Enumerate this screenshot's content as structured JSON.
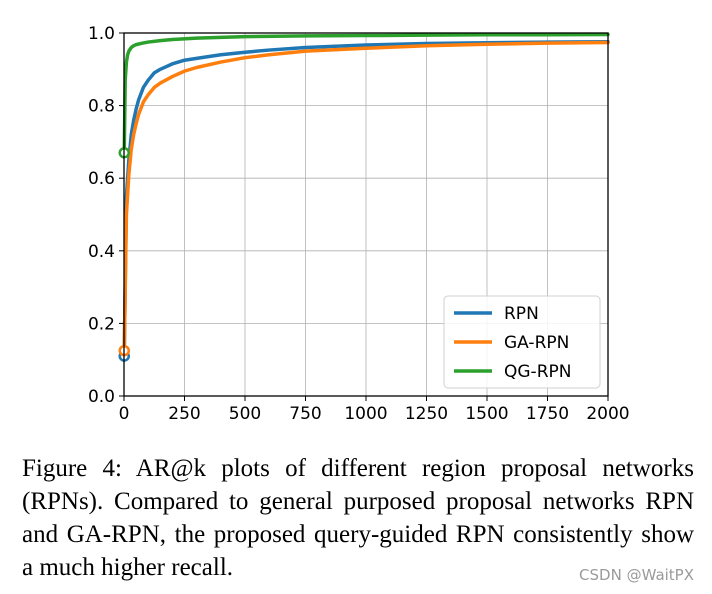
{
  "chart_data": {
    "type": "line",
    "title": "",
    "xlabel": "",
    "ylabel": "",
    "xlim": [
      0,
      2000
    ],
    "ylim": [
      0.0,
      1.0
    ],
    "x_ticks": [
      0,
      250,
      500,
      750,
      1000,
      1250,
      1500,
      1750,
      2000
    ],
    "x_tick_labels": [
      "0",
      "250",
      "500",
      "750",
      "1000",
      "1250",
      "1500",
      "1750",
      "2000"
    ],
    "y_ticks": [
      0.0,
      0.2,
      0.4,
      0.6,
      0.8,
      1.0
    ],
    "y_tick_labels": [
      "0.0",
      "0.2",
      "0.4",
      "0.6",
      "0.8",
      "1.0"
    ],
    "grid": true,
    "legend_position": "lower-right",
    "series": [
      {
        "name": "RPN",
        "color": "#1f77b4",
        "x": [
          1,
          10,
          20,
          30,
          40,
          50,
          60,
          80,
          100,
          125,
          150,
          200,
          250,
          300,
          400,
          500,
          600,
          750,
          1000,
          1250,
          1500,
          1750,
          2000
        ],
        "y": [
          0.11,
          0.55,
          0.65,
          0.72,
          0.76,
          0.79,
          0.815,
          0.85,
          0.87,
          0.89,
          0.9,
          0.915,
          0.925,
          0.93,
          0.94,
          0.947,
          0.953,
          0.96,
          0.967,
          0.971,
          0.973,
          0.975,
          0.976
        ],
        "start_marker": true
      },
      {
        "name": "GA-RPN",
        "color": "#ff7f0e",
        "x": [
          1,
          10,
          20,
          30,
          40,
          50,
          60,
          80,
          100,
          125,
          150,
          200,
          250,
          300,
          400,
          500,
          600,
          750,
          1000,
          1250,
          1500,
          1750,
          2000
        ],
        "y": [
          0.125,
          0.5,
          0.61,
          0.68,
          0.72,
          0.75,
          0.775,
          0.81,
          0.83,
          0.85,
          0.862,
          0.88,
          0.895,
          0.905,
          0.92,
          0.932,
          0.94,
          0.95,
          0.958,
          0.965,
          0.969,
          0.972,
          0.974
        ],
        "start_marker": true
      },
      {
        "name": "QG-RPN",
        "color": "#2ca02c",
        "x": [
          1,
          5,
          10,
          15,
          20,
          30,
          40,
          50,
          75,
          100,
          150,
          200,
          300,
          400,
          500,
          750,
          1000,
          1250,
          1500,
          1750,
          2000
        ],
        "y": [
          0.67,
          0.87,
          0.92,
          0.94,
          0.95,
          0.96,
          0.965,
          0.968,
          0.972,
          0.975,
          0.979,
          0.982,
          0.986,
          0.988,
          0.99,
          0.992,
          0.993,
          0.994,
          0.995,
          0.995,
          0.996
        ],
        "start_marker": true
      }
    ]
  },
  "caption": "Figure 4: AR@k plots of different region proposal networks (RPNs). Compared to general purposed proposal networks RPN and GA-RPN, the proposed query-guided RPN consistently show a much higher recall.",
  "watermark": "CSDN @WaitPX"
}
